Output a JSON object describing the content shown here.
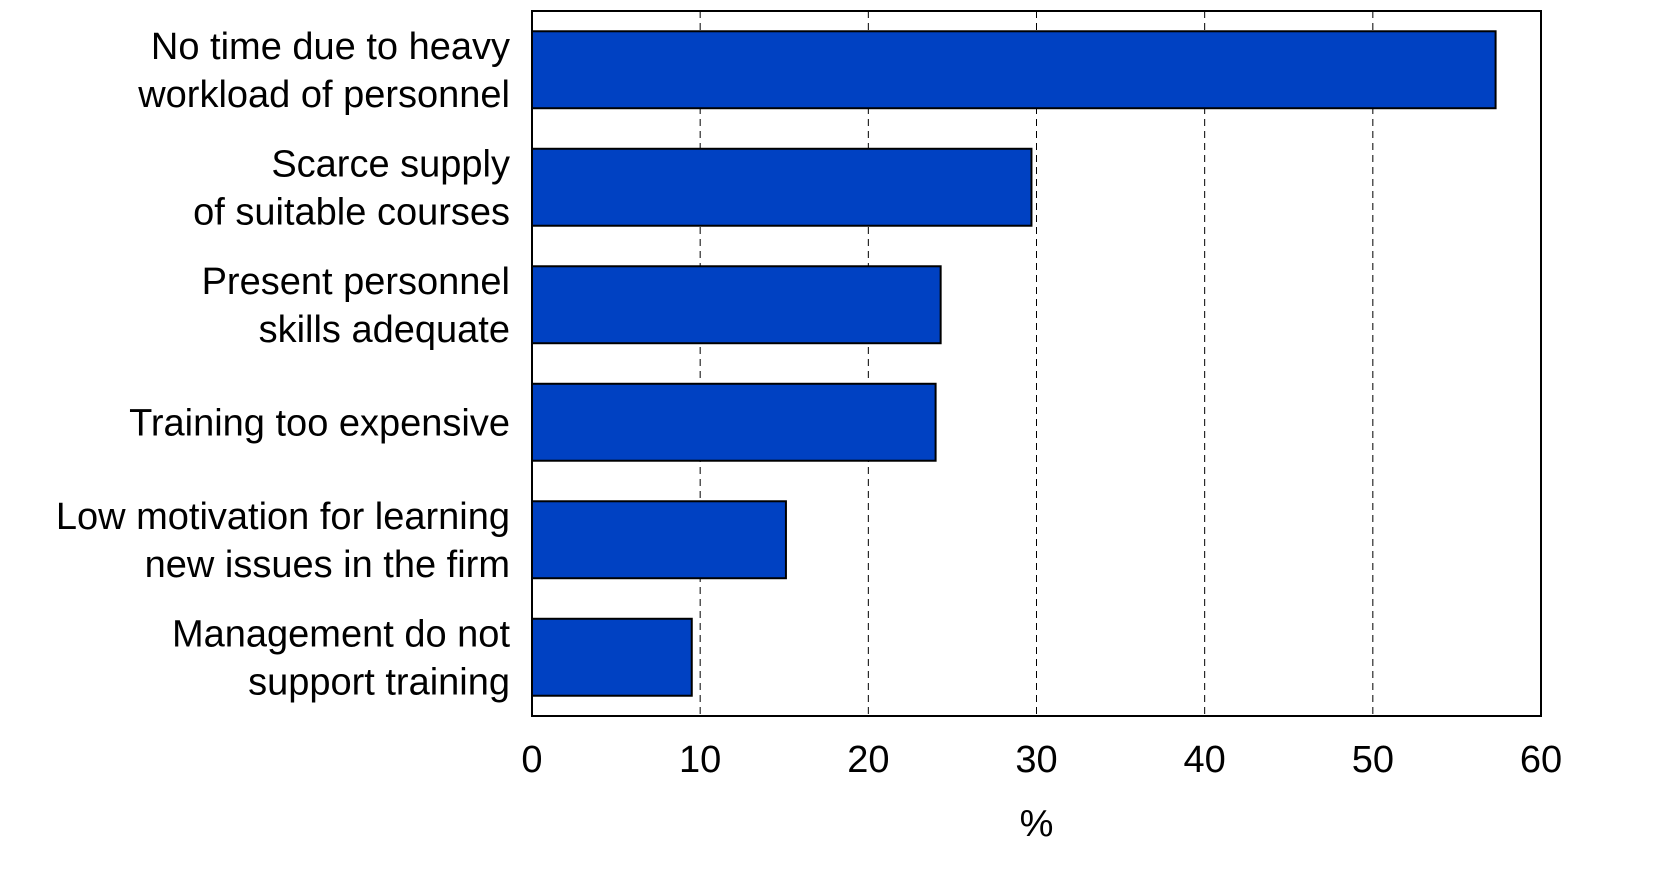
{
  "chart_data": {
    "type": "bar",
    "orientation": "horizontal",
    "categories": [
      [
        "No time due to heavy",
        "workload of personnel"
      ],
      [
        "Scarce supply",
        "of suitable courses"
      ],
      [
        "Present personnel",
        "skills adequate"
      ],
      [
        "Training too expensive"
      ],
      [
        "Low motivation for learning",
        "new issues in the firm"
      ],
      [
        "Management do not",
        "support training"
      ]
    ],
    "values": [
      57.3,
      29.7,
      24.3,
      24.0,
      15.1,
      9.5
    ],
    "xlabel": "%",
    "ylabel": "",
    "xlim": [
      0,
      60
    ],
    "xticks": [
      0,
      10,
      20,
      30,
      40,
      50,
      60
    ],
    "grid": "vertical dashed",
    "bar_color": "#0041c2"
  }
}
